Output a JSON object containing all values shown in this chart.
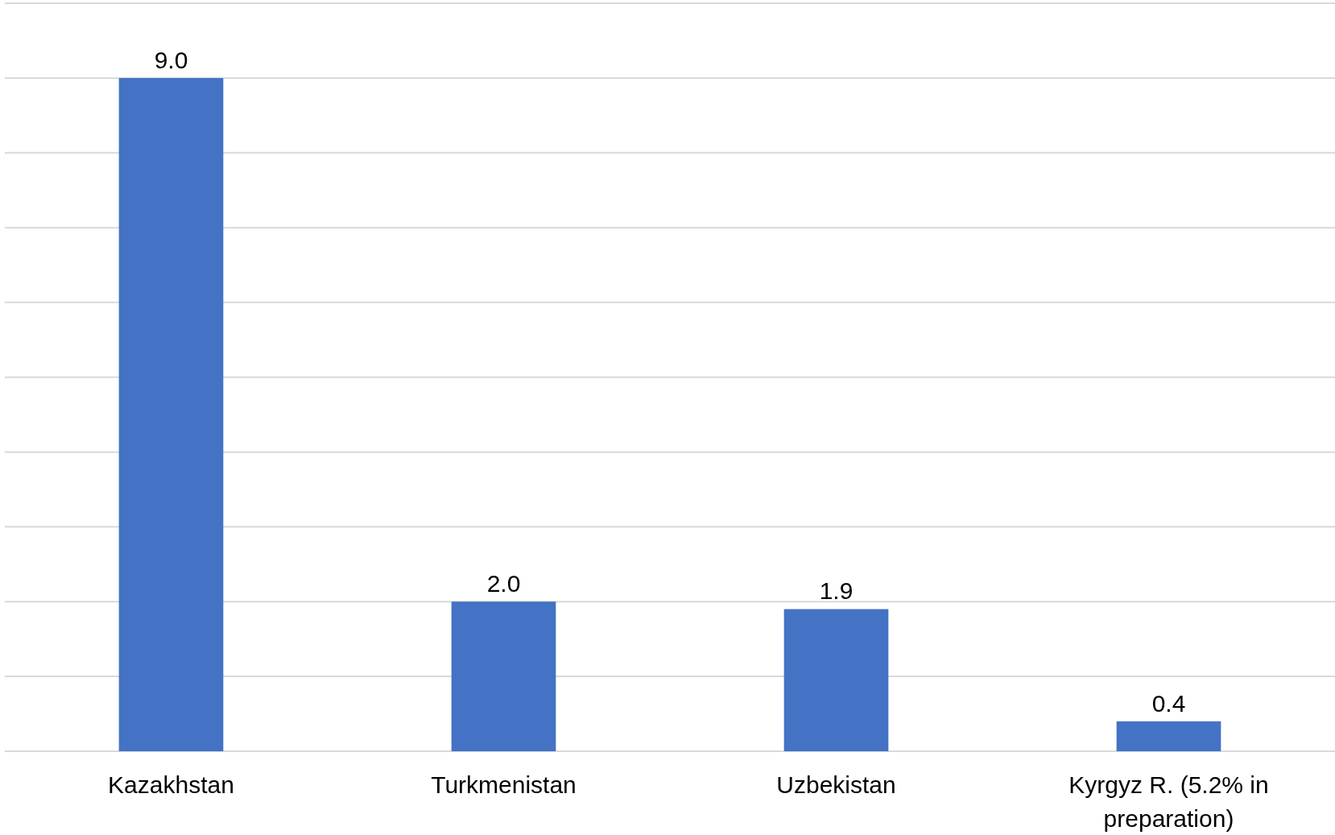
{
  "chart_data": {
    "type": "bar",
    "categories": [
      "Kazakhstan",
      "Turkmenistan",
      "Uzbekistan",
      "Kyrgyz R. (5.2% in preparation)"
    ],
    "values": [
      9.0,
      2.0,
      1.9,
      0.4
    ],
    "value_labels": [
      "9.0",
      "2.0",
      "1.9",
      "0.4"
    ],
    "color": "#4472c4",
    "ylim": [
      0,
      10
    ],
    "yticks": [
      {
        "value": 0,
        "label": null
      },
      {
        "value": 1,
        "label": null
      },
      {
        "value": 2,
        "label": null
      },
      {
        "value": 3,
        "label": null
      },
      {
        "value": 4,
        "label": null
      },
      {
        "value": 5,
        "label": null
      },
      {
        "value": 6,
        "label": null
      },
      {
        "value": 7,
        "label": null
      },
      {
        "value": 8,
        "label": null
      },
      {
        "value": 9,
        "label": null
      },
      {
        "value": 10,
        "label": null
      }
    ],
    "grid": "y",
    "tick_labels": "x"
  }
}
